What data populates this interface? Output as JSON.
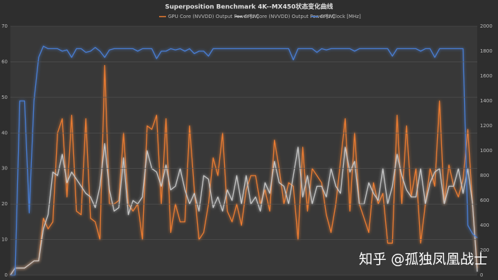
{
  "chart_data": {
    "type": "line",
    "title": "Superposition Benchmark 4K--MX450状态变化曲线",
    "watermark": "知乎 @孤独凤凰战士",
    "ylim": [
      0,
      70
    ],
    "yticks": [
      0,
      10,
      20,
      30,
      40,
      50,
      60,
      70
    ],
    "y2lim": [
      0,
      2000
    ],
    "y2ticks": [
      0,
      200,
      400,
      600,
      800,
      1000,
      1200,
      1400,
      1600,
      1800,
      2000
    ],
    "grid": true,
    "legend": "top",
    "series": [
      {
        "name": "GPU Core (NVVDD) Output Power [W]",
        "color": "#ed7d31",
        "values": [
          0,
          2,
          2,
          2,
          3,
          4,
          4,
          16,
          13,
          15,
          40,
          44,
          22,
          45,
          18,
          17,
          44,
          16,
          15,
          10,
          59,
          20,
          20,
          21,
          40,
          20,
          18,
          20,
          10,
          42,
          41,
          45,
          20,
          44,
          12,
          20,
          15,
          15,
          42,
          24,
          10,
          12,
          20,
          33,
          28,
          40,
          18,
          15,
          20,
          14,
          24,
          28,
          28,
          20,
          24,
          18,
          38,
          30,
          20,
          26,
          25,
          10,
          36,
          18,
          30,
          28,
          26,
          17,
          12,
          20,
          32,
          44,
          18,
          40,
          20,
          16,
          12,
          26,
          20,
          23,
          9,
          9,
          45,
          20,
          42,
          22,
          30,
          9,
          20,
          30,
          25,
          49,
          20,
          31,
          25,
          22,
          27,
          41,
          20,
          2
        ]
      },
      {
        "name": "GPU Core (NVVDD) Output Power [W]",
        "color": "#c8c8c8",
        "values": [
          0,
          2,
          2,
          2,
          3,
          4,
          4,
          13,
          17,
          29,
          28,
          34,
          26,
          29,
          27,
          25,
          23,
          22,
          19,
          25,
          37,
          24,
          18,
          19,
          33,
          17,
          21,
          20,
          22,
          35,
          30,
          29,
          25,
          31,
          24,
          25,
          30,
          24,
          20,
          23,
          18,
          28,
          27,
          19,
          22,
          18,
          24,
          21,
          28,
          20,
          28,
          20,
          22,
          18,
          26,
          23,
          32,
          26,
          25,
          20,
          28,
          36,
          22,
          28,
          20,
          25,
          25,
          22,
          30,
          25,
          23,
          36,
          29,
          32,
          20,
          20,
          26,
          23,
          21,
          30,
          20,
          25,
          34,
          28,
          24,
          22,
          22,
          30,
          20,
          26,
          29,
          30,
          20,
          25,
          25,
          30,
          23,
          30,
          20,
          1
        ]
      },
      {
        "name": "GPU Clock [MHz]",
        "color": "#4a7fd6",
        "axis": "y2",
        "values": [
          0,
          0,
          1400,
          1400,
          500,
          1400,
          1750,
          1840,
          1820,
          1820,
          1820,
          1800,
          1810,
          1750,
          1820,
          1820,
          1790,
          1800,
          1830,
          1800,
          1750,
          1810,
          1820,
          1820,
          1820,
          1820,
          1820,
          1800,
          1820,
          1820,
          1820,
          1740,
          1800,
          1800,
          1820,
          1810,
          1820,
          1800,
          1820,
          1780,
          1800,
          1800,
          1760,
          1820,
          1820,
          1820,
          1820,
          1820,
          1820,
          1820,
          1820,
          1820,
          1820,
          1820,
          1820,
          1820,
          1820,
          1820,
          1820,
          1820,
          1730,
          1820,
          1820,
          1820,
          1820,
          1790,
          1820,
          1810,
          1820,
          1820,
          1820,
          1820,
          1820,
          1800,
          1820,
          1820,
          1820,
          1820,
          1820,
          1820,
          1820,
          1760,
          1820,
          1820,
          1820,
          1820,
          1820,
          1800,
          1820,
          1820,
          1750,
          1820,
          1820,
          1820,
          1820,
          1820,
          1820,
          400,
          333,
          300
        ]
      }
    ]
  }
}
